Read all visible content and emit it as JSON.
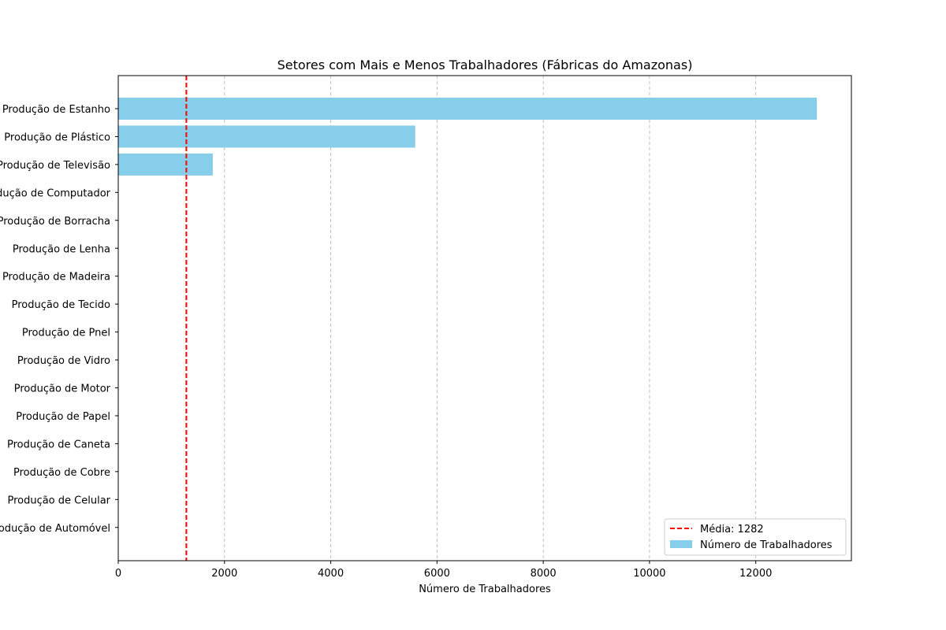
{
  "chart_data": {
    "type": "bar",
    "orientation": "horizontal",
    "title": "Setores com Mais e Menos Trabalhadores (Fábricas do Amazonas)",
    "xlabel": "Número de Trabalhadores",
    "ylabel": "",
    "xlim": [
      0,
      13800
    ],
    "xticks": [
      0,
      2000,
      4000,
      6000,
      8000,
      10000,
      12000
    ],
    "grid": "x, dashed",
    "legend_position": "lower right",
    "bar_color": "#87CEEB",
    "mean_line_color": "#FF0000",
    "categories": [
      "Produção de Estanho",
      "Produção de Plástico",
      "Produção de Televisão",
      "Produção de Computador",
      "Produção de Borracha",
      "Produção de Lenha",
      "Produção de Madeira",
      "Produção de Tecido",
      "Produção de Pnel",
      "Produção de Vidro",
      "Produção de Motor",
      "Produção de Papel",
      "Produção de Caneta",
      "Produção de Cobre",
      "Produção de Celular",
      "Produção de Automóvel"
    ],
    "values": [
      13150,
      5590,
      1780,
      0,
      0,
      0,
      0,
      0,
      0,
      0,
      0,
      0,
      0,
      0,
      0,
      0
    ],
    "mean": 1282,
    "legend": [
      {
        "label": "Média: 1282",
        "kind": "line"
      },
      {
        "label": "Número de Trabalhadores",
        "kind": "bar"
      }
    ]
  }
}
